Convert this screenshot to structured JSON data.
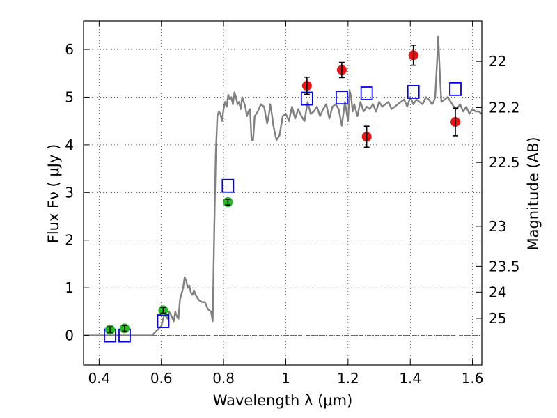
{
  "chart_data": {
    "type": "scatter",
    "xlabel": "Wavelength  λ (μm)",
    "ylabel": "Flux  Fν  ( μJy )",
    "y2label": "Magnitude (AB)",
    "xlim": [
      0.35,
      1.63
    ],
    "ylim": [
      -0.62,
      6.6
    ],
    "grid": true,
    "x_ticks": [
      {
        "value": 0.4,
        "label": "0.4"
      },
      {
        "value": 0.6,
        "label": "0.6"
      },
      {
        "value": 0.8,
        "label": "0.8"
      },
      {
        "value": 1.0,
        "label": "1"
      },
      {
        "value": 1.2,
        "label": "1.2"
      },
      {
        "value": 1.4,
        "label": "1.4"
      },
      {
        "value": 1.6,
        "label": "1.6"
      }
    ],
    "y_ticks": [
      {
        "value": 0,
        "label": "0"
      },
      {
        "value": 1,
        "label": "1"
      },
      {
        "value": 2,
        "label": "2"
      },
      {
        "value": 3,
        "label": "3"
      },
      {
        "value": 4,
        "label": "4"
      },
      {
        "value": 5,
        "label": "5"
      },
      {
        "value": 6,
        "label": "6"
      }
    ],
    "y2_ticks": [
      {
        "flux": 5.75,
        "label": "22"
      },
      {
        "flux": 4.78,
        "label": "22.2"
      },
      {
        "flux": 3.63,
        "label": "22.5"
      },
      {
        "flux": 2.29,
        "label": "23"
      },
      {
        "flux": 1.45,
        "label": "23.5"
      },
      {
        "flux": 0.91,
        "label": "24"
      },
      {
        "flux": 0.36,
        "label": "25"
      }
    ],
    "colors": {
      "model": "#808080",
      "green_points": "#22bb22",
      "red_points": "#ee1111",
      "model_boxes": "#0000ee",
      "errorbars": "#000000",
      "zero_line": "#555555"
    },
    "series": [
      {
        "name": "model spectrum",
        "style": "line",
        "x": [
          0.35,
          0.57,
          0.585,
          0.6,
          0.61,
          0.62,
          0.625,
          0.63,
          0.64,
          0.645,
          0.65,
          0.655,
          0.66,
          0.67,
          0.675,
          0.68,
          0.685,
          0.69,
          0.695,
          0.7,
          0.705,
          0.71,
          0.715,
          0.72,
          0.73,
          0.74,
          0.75,
          0.76,
          0.765,
          0.77,
          0.775,
          0.78,
          0.785,
          0.79,
          0.795,
          0.8,
          0.805,
          0.81,
          0.815,
          0.82,
          0.825,
          0.83,
          0.835,
          0.84,
          0.845,
          0.85,
          0.855,
          0.86,
          0.865,
          0.87,
          0.875,
          0.88,
          0.885,
          0.89,
          0.895,
          0.9,
          0.91,
          0.92,
          0.93,
          0.94,
          0.945,
          0.95,
          0.955,
          0.96,
          0.97,
          0.98,
          0.99,
          1.0,
          1.01,
          1.02,
          1.03,
          1.04,
          1.05,
          1.06,
          1.07,
          1.08,
          1.09,
          1.1,
          1.11,
          1.12,
          1.13,
          1.14,
          1.15,
          1.16,
          1.17,
          1.18,
          1.19,
          1.2,
          1.205,
          1.21,
          1.215,
          1.22,
          1.23,
          1.24,
          1.25,
          1.26,
          1.27,
          1.28,
          1.29,
          1.3,
          1.31,
          1.32,
          1.33,
          1.34,
          1.35,
          1.36,
          1.37,
          1.38,
          1.39,
          1.4,
          1.41,
          1.42,
          1.43,
          1.44,
          1.45,
          1.46,
          1.47,
          1.475,
          1.48,
          1.485,
          1.49,
          1.495,
          1.5,
          1.51,
          1.52,
          1.53,
          1.54,
          1.55,
          1.56,
          1.57,
          1.58,
          1.59,
          1.6,
          1.61,
          1.62,
          1.63
        ],
        "y": [
          0.0,
          0.0,
          0.1,
          0.2,
          0.45,
          0.35,
          0.5,
          0.45,
          0.3,
          0.5,
          0.4,
          0.35,
          0.75,
          1.0,
          1.22,
          1.15,
          1.0,
          1.05,
          0.9,
          0.85,
          0.95,
          0.85,
          0.8,
          0.75,
          0.7,
          0.7,
          0.55,
          0.5,
          0.3,
          2.2,
          3.8,
          4.6,
          4.7,
          4.65,
          4.5,
          4.75,
          4.9,
          4.8,
          5.05,
          4.95,
          5.0,
          4.85,
          5.1,
          5.0,
          4.85,
          4.9,
          4.75,
          5.0,
          4.9,
          4.8,
          4.6,
          4.7,
          4.75,
          4.1,
          4.1,
          4.6,
          4.7,
          4.85,
          4.8,
          4.45,
          4.6,
          4.85,
          4.65,
          4.4,
          4.1,
          4.2,
          4.6,
          4.65,
          4.5,
          4.8,
          4.55,
          4.75,
          4.6,
          4.5,
          4.9,
          4.65,
          4.7,
          4.8,
          4.6,
          4.75,
          4.85,
          4.55,
          4.8,
          4.85,
          4.75,
          4.4,
          4.9,
          4.5,
          5.15,
          5.0,
          4.7,
          4.85,
          4.6,
          4.9,
          4.7,
          4.8,
          4.75,
          4.85,
          4.7,
          4.9,
          4.8,
          4.85,
          4.9,
          4.75,
          4.8,
          4.85,
          4.9,
          4.95,
          4.8,
          5.0,
          4.85,
          4.95,
          4.9,
          4.85,
          5.0,
          4.95,
          4.85,
          4.9,
          5.0,
          5.6,
          6.28,
          5.5,
          4.9,
          4.95,
          5.0,
          4.9,
          4.8,
          4.75,
          4.85,
          4.7,
          4.8,
          4.65,
          4.75,
          4.7,
          4.7,
          4.65
        ]
      },
      {
        "name": "green photometry",
        "style": "errorbar",
        "marker": "circle",
        "x": [
          0.435,
          0.482,
          0.606,
          0.814
        ],
        "y": [
          0.12,
          0.15,
          0.53,
          2.8
        ],
        "yerr": [
          0.06,
          0.06,
          0.06,
          0.06
        ]
      },
      {
        "name": "red photometry",
        "style": "errorbar",
        "marker": "circle",
        "x": [
          1.068,
          1.18,
          1.26,
          1.41,
          1.545
        ],
        "y": [
          5.24,
          5.57,
          4.17,
          5.88,
          4.48
        ],
        "yerr": [
          0.18,
          0.16,
          0.22,
          0.21,
          0.29
        ]
      },
      {
        "name": "model band fluxes",
        "style": "square",
        "x": [
          0.435,
          0.482,
          0.606,
          0.814,
          1.068,
          1.18,
          1.26,
          1.41,
          1.545
        ],
        "y": [
          0.0,
          0.0,
          0.3,
          3.14,
          4.97,
          4.99,
          5.08,
          5.11,
          5.17
        ]
      }
    ]
  }
}
